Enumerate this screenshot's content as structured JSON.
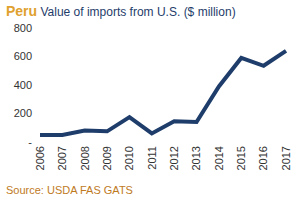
{
  "chart_data": {
    "type": "line",
    "title": "Peru",
    "subtitle": "Value of imports from U.S. ($ million)",
    "annotation": "Source: USDA FAS GATS",
    "categories": [
      "2006",
      "2007",
      "2008",
      "2009",
      "2010",
      "2011",
      "2012",
      "2013",
      "2014",
      "2015",
      "2016",
      "2017"
    ],
    "values": [
      50,
      50,
      80,
      75,
      175,
      60,
      145,
      140,
      390,
      590,
      535,
      640
    ],
    "color": "#1f3d6b",
    "ylim": [
      0,
      800
    ],
    "yticks": [
      {
        "value": 0,
        "label": "-"
      },
      200,
      400,
      600,
      800
    ],
    "grid": false
  }
}
